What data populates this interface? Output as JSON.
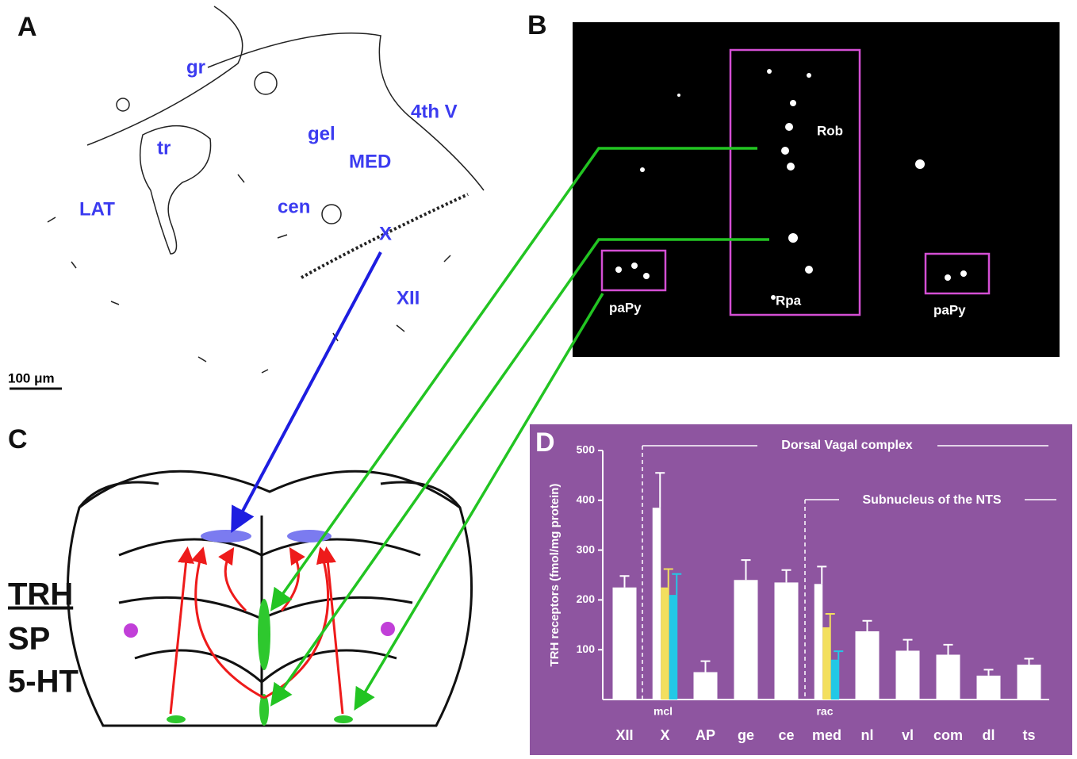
{
  "panels": {
    "A": {
      "letter": "A",
      "labels": [
        "gr",
        "tr",
        "gel",
        "MED",
        "4th V",
        "LAT",
        "cen",
        "X",
        "XII"
      ],
      "scale": "100 μm"
    },
    "B": {
      "letter": "B",
      "labels": [
        "Rob",
        "Rpa",
        "paPy",
        "paPy"
      ]
    },
    "C": {
      "letter": "C",
      "labels": [
        "TRH",
        "SP",
        "5-HT"
      ]
    }
  },
  "chart_data": {
    "type": "bar",
    "letter": "D",
    "y_label": "TRH receptors (fmol/mg protein)",
    "annotations": [
      "Dorsal Vagal complex",
      "Subnucleus of the NTS",
      "mcl",
      "rac"
    ],
    "categories": [
      "XII",
      "X",
      "AP",
      "ge",
      "ce",
      "med",
      "nl",
      "vl",
      "com",
      "dl",
      "ts"
    ],
    "series": [
      {
        "color": "#ffffff",
        "values": [
          225,
          385,
          55,
          240,
          235,
          232,
          137,
          98,
          90,
          48,
          70
        ],
        "errors": [
          23,
          70,
          22,
          40,
          25,
          35,
          21,
          22,
          20,
          12,
          12
        ]
      },
      {
        "color": "#f3df5e",
        "values": [
          null,
          225,
          null,
          null,
          null,
          145,
          null,
          null,
          null,
          null,
          null
        ],
        "errors": [
          null,
          37,
          null,
          null,
          null,
          27,
          null,
          null,
          null,
          null,
          null
        ]
      },
      {
        "color": "#22c8e6",
        "values": [
          null,
          210,
          null,
          null,
          null,
          80,
          null,
          null,
          null,
          null,
          null
        ],
        "errors": [
          null,
          42,
          null,
          null,
          null,
          17,
          null,
          null,
          null,
          null,
          null
        ]
      }
    ],
    "ylim": [
      0,
      500
    ],
    "yticks": [
      100,
      200,
      300,
      400,
      500
    ],
    "background": "#8e55a0"
  }
}
